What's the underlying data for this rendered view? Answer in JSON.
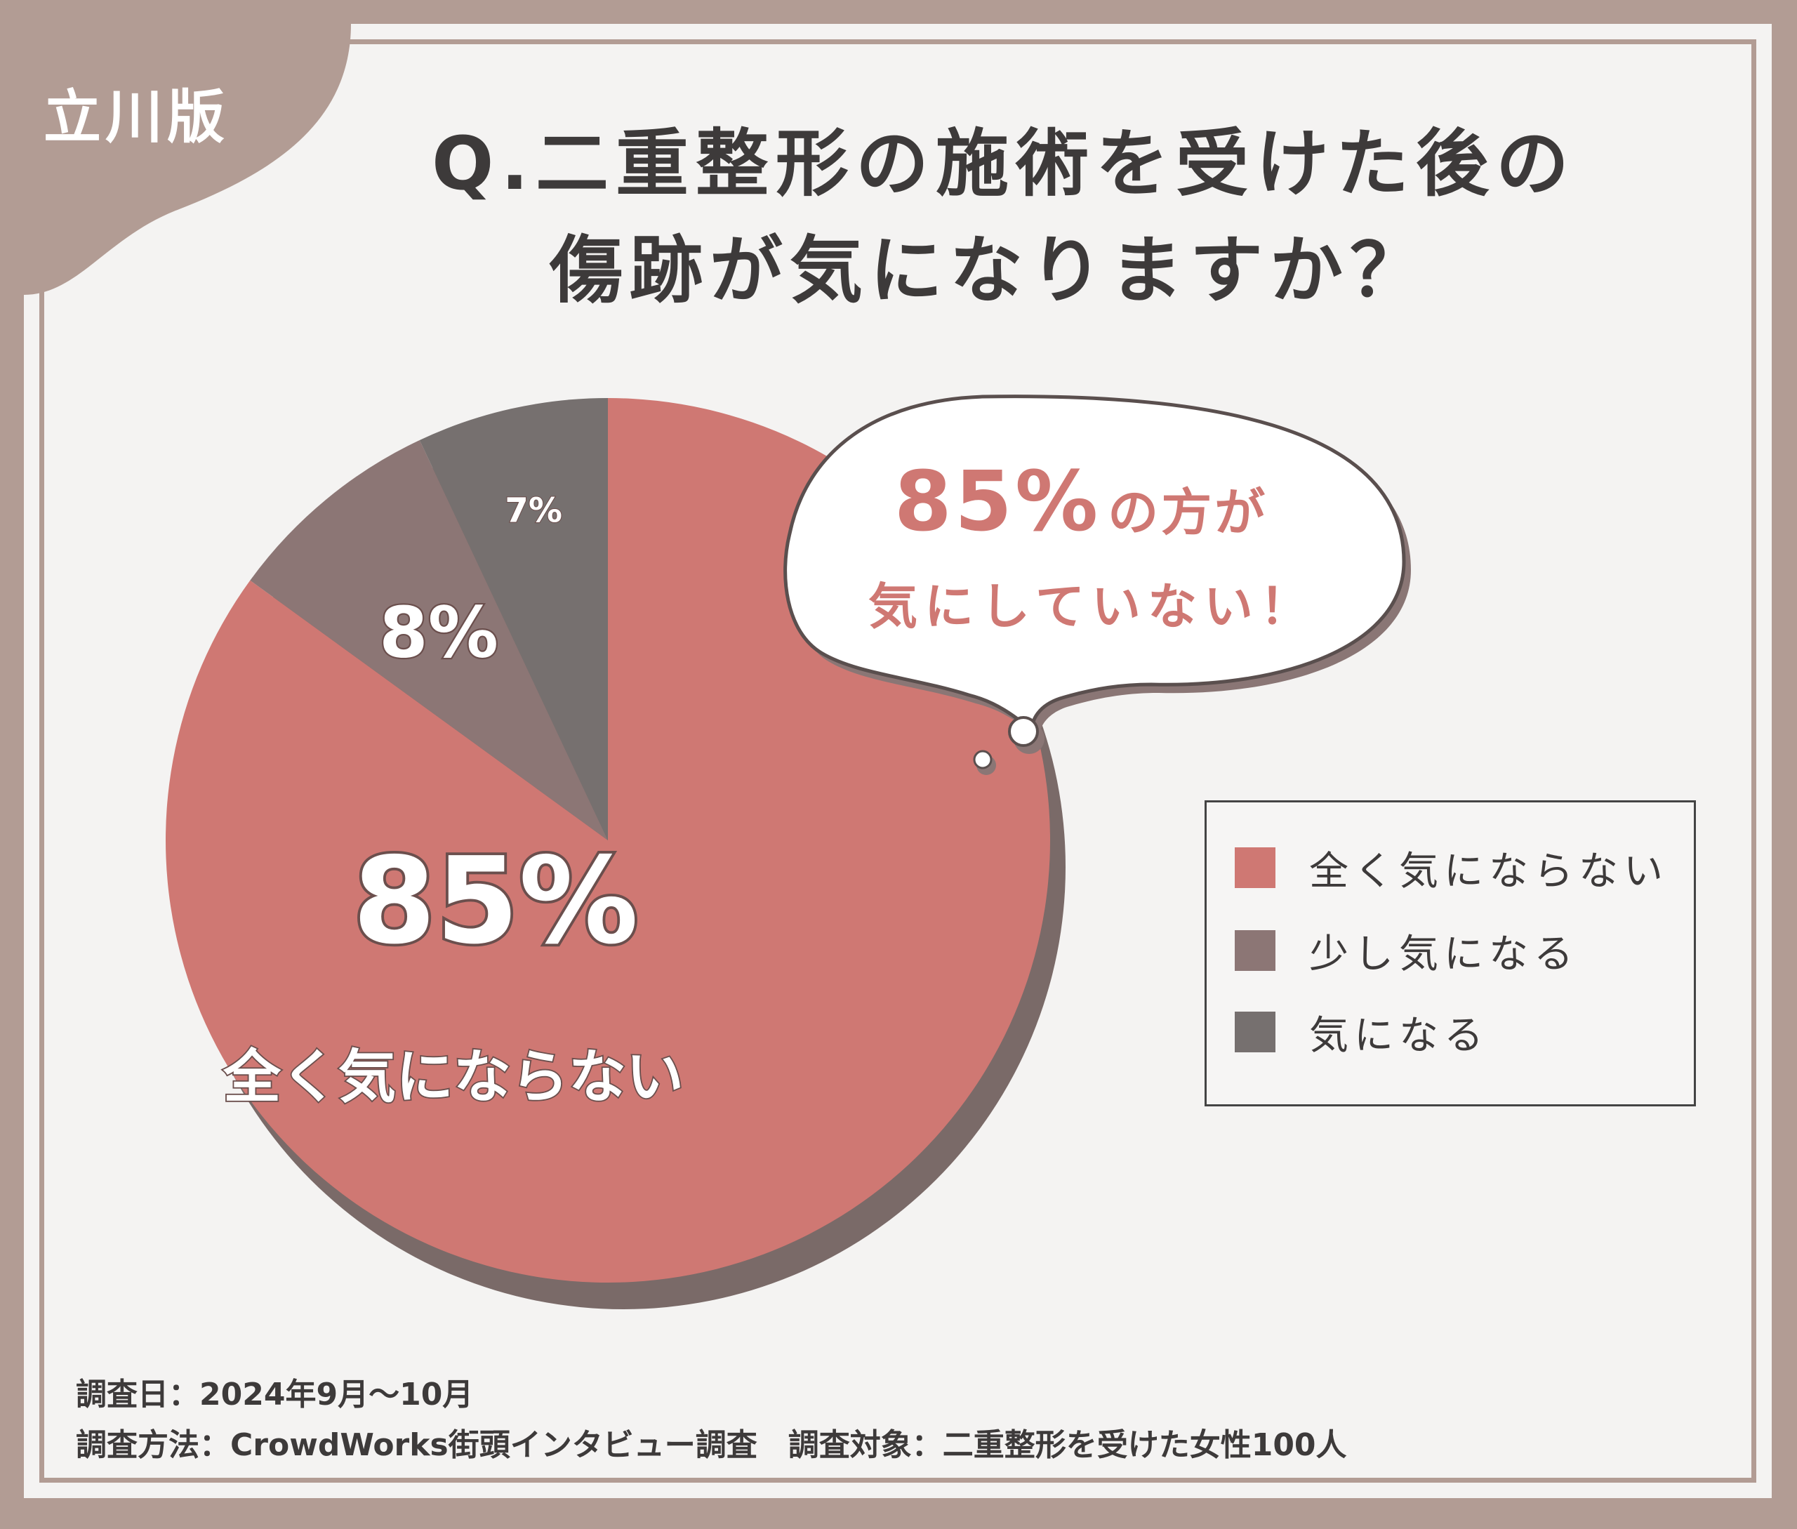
{
  "tag": "立川版",
  "title": {
    "line1": "Q.二重整形の施術を受けた後の",
    "line2": "傷跡が気になりますか？"
  },
  "bubble": {
    "highlight": "85%",
    "line1_rest": "の方が",
    "line2": "気にしていない！"
  },
  "main_label": "全く気にならない",
  "chart_data": {
    "type": "pie",
    "categories": [
      "全く気にならない",
      "少し気になる",
      "気になる"
    ],
    "values": [
      85,
      8,
      7
    ],
    "labels": [
      "85%",
      "8%",
      "7%"
    ],
    "colors": [
      "#cf7873",
      "#8c7675",
      "#76706f"
    ],
    "legend_position": "right"
  },
  "footer": {
    "line1": "調査日：2024年9月～10月",
    "line2": "調査方法：CrowdWorks街頭インタビュー調査　調査対象：二重整形を受けた女性100人"
  }
}
